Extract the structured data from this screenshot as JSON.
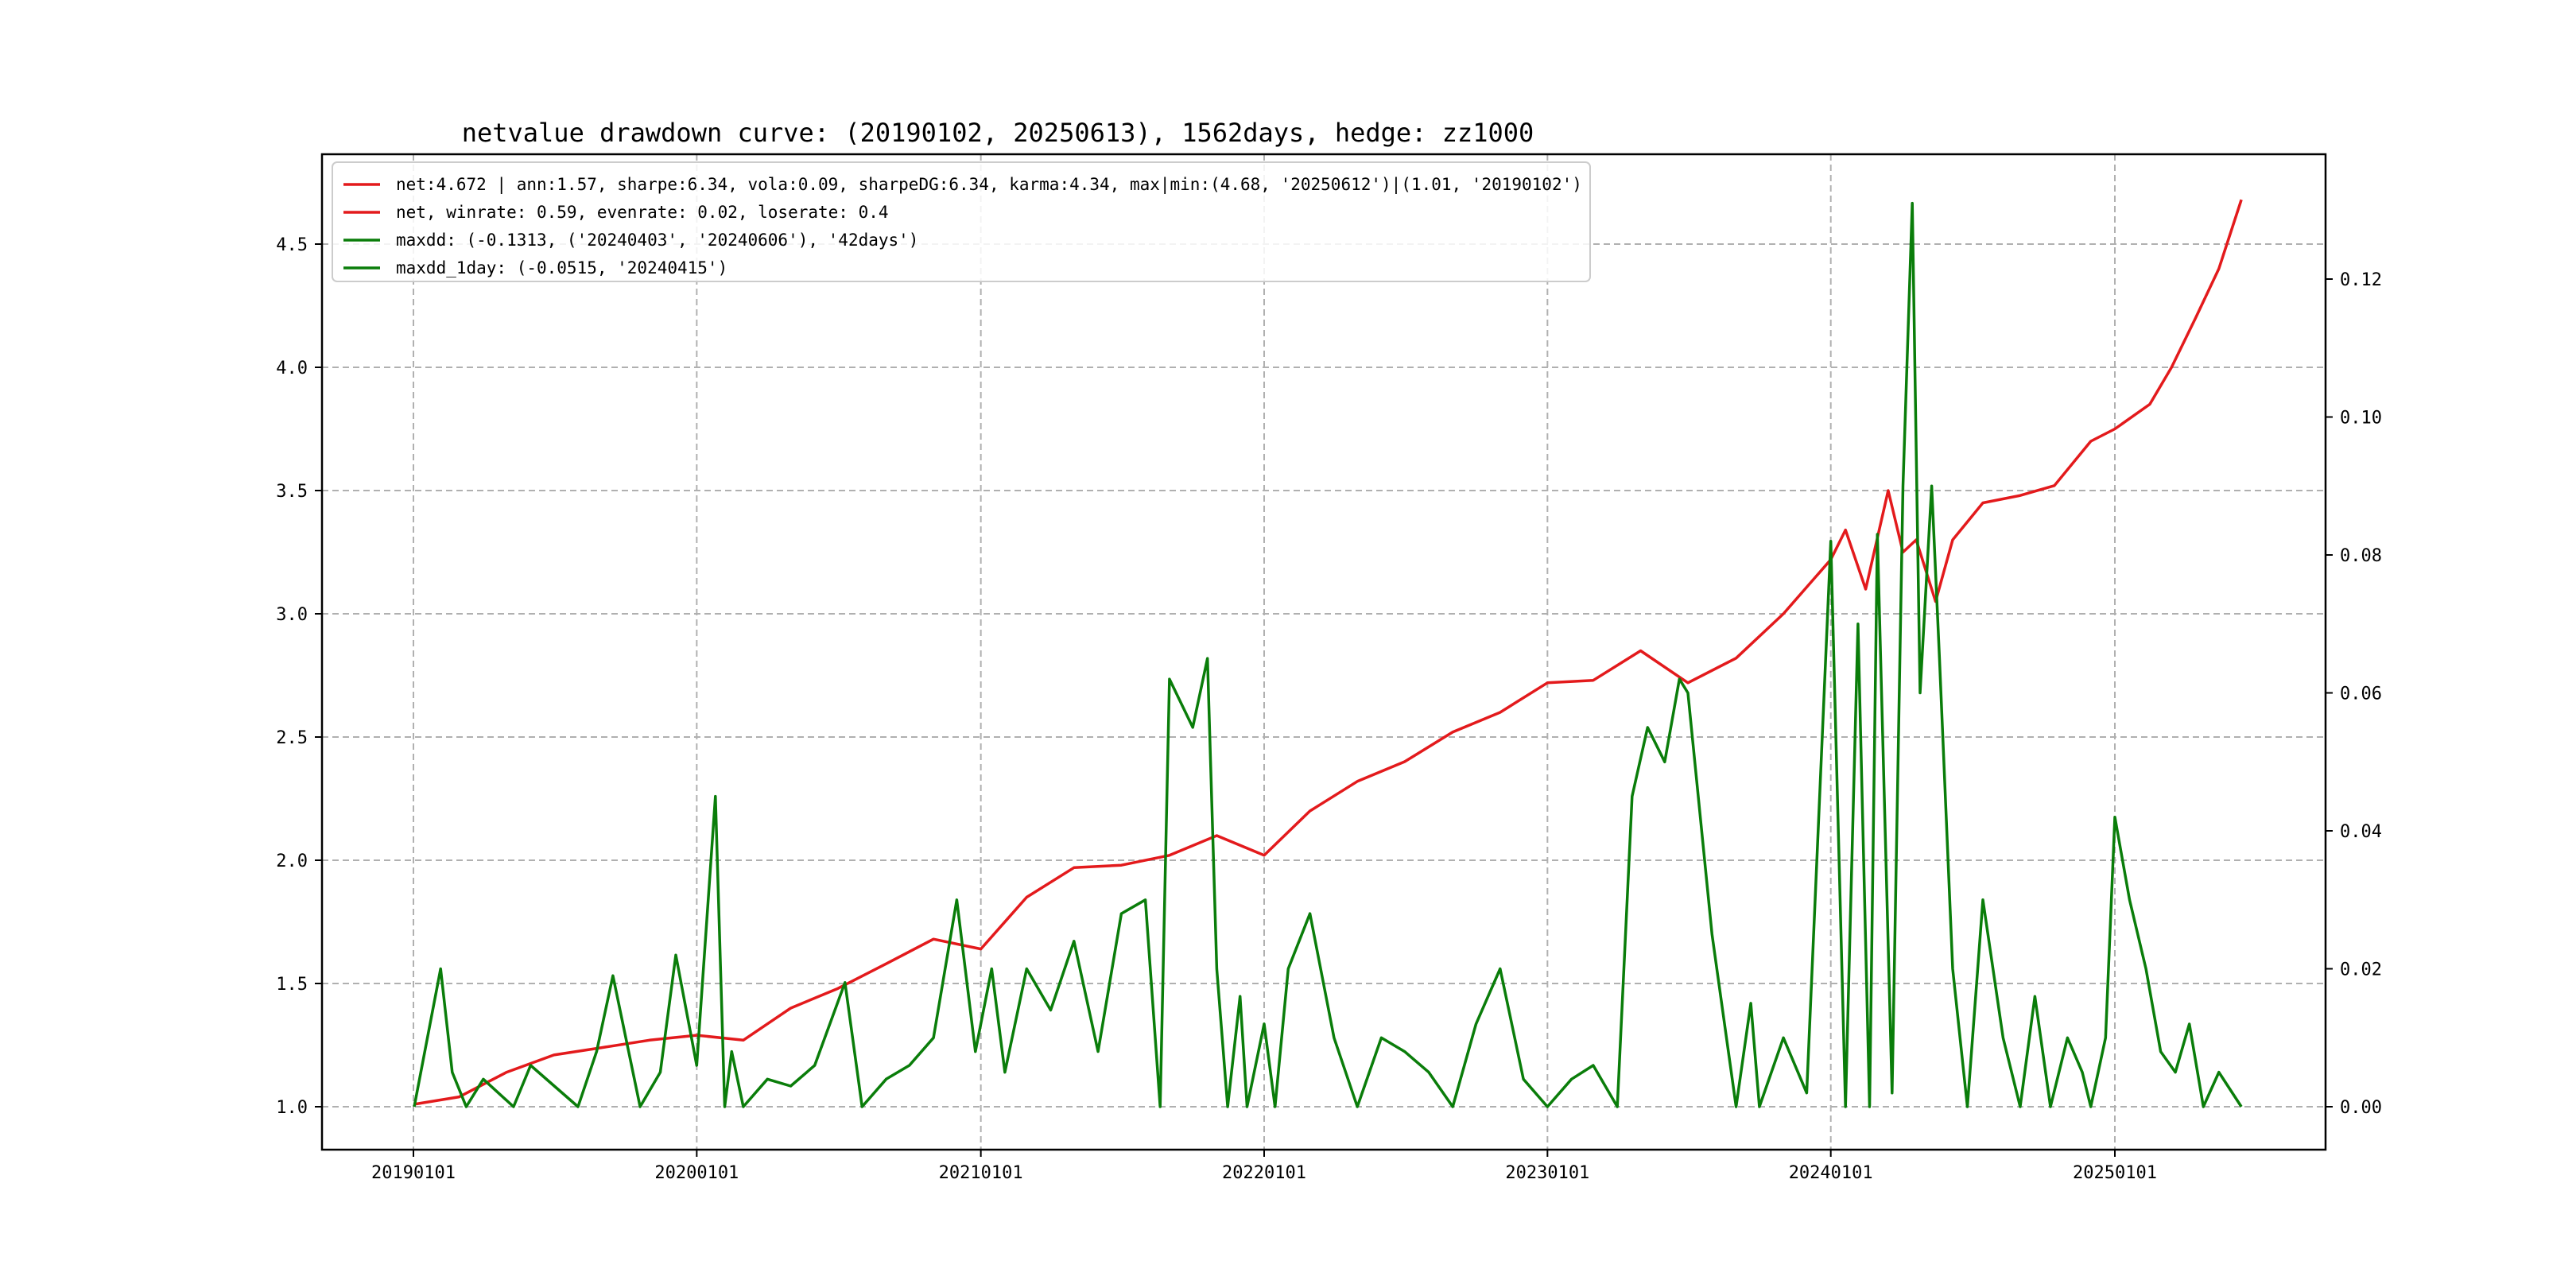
{
  "chart_data": {
    "type": "line",
    "title": "netvalue drawdown curve: (20190102, 20250613), 1562days, hedge: zz1000",
    "x_range": [
      "2019-01-02",
      "2025-06-13"
    ],
    "x_ticks": [
      "20190101",
      "20200101",
      "20210101",
      "20220101",
      "20230101",
      "20240101",
      "20250101"
    ],
    "y_left_ticks": [
      "1.0",
      "1.5",
      "2.0",
      "2.5",
      "3.0",
      "3.5",
      "4.0",
      "4.5"
    ],
    "y_right_ticks": [
      "0.00",
      "0.02",
      "0.04",
      "0.06",
      "0.08",
      "0.10",
      "0.12"
    ],
    "grid": true,
    "legend_position": "top-left",
    "legend": [
      {
        "label": "net:4.672 | ann:1.57, sharpe:6.34, vola:0.09, sharpeDG:6.34, karma:4.34, max|min:(4.68, '20250612')|(1.01, '20190102')",
        "color": "#e31a1c"
      },
      {
        "label": "net, winrate: 0.59, evenrate: 0.02, loserate: 0.4",
        "color": "#e31a1c"
      },
      {
        "label": "maxdd: (-0.1313, ('20240403', '20240606'), '42days')",
        "color": "#0a7d0a"
      },
      {
        "label": "maxdd_1day: (-0.0515, '20240415')",
        "color": "#0a7d0a"
      }
    ],
    "series": [
      {
        "axis": "left",
        "color": "#e31a1c",
        "x": [
          "2019-01-02",
          "2019-03-01",
          "2019-05-01",
          "2019-07-01",
          "2019-09-01",
          "2019-11-01",
          "2020-01-01",
          "2020-03-01",
          "2020-05-01",
          "2020-07-01",
          "2020-09-01",
          "2020-11-01",
          "2021-01-01",
          "2021-03-01",
          "2021-05-01",
          "2021-07-01",
          "2021-09-01",
          "2021-11-01",
          "2022-01-01",
          "2022-03-01",
          "2022-05-01",
          "2022-07-01",
          "2022-09-01",
          "2022-11-01",
          "2023-01-01",
          "2023-03-01",
          "2023-05-01",
          "2023-07-01",
          "2023-09-01",
          "2023-11-01",
          "2024-01-01",
          "2024-01-20",
          "2024-02-15",
          "2024-03-15",
          "2024-04-03",
          "2024-04-20",
          "2024-05-15",
          "2024-06-06",
          "2024-07-15",
          "2024-09-01",
          "2024-10-15",
          "2024-12-01",
          "2025-01-01",
          "2025-02-15",
          "2025-03-15",
          "2025-04-15",
          "2025-05-15",
          "2025-06-13"
        ],
        "values": [
          1.01,
          1.04,
          1.14,
          1.21,
          1.24,
          1.27,
          1.29,
          1.27,
          1.4,
          1.48,
          1.58,
          1.68,
          1.64,
          1.85,
          1.97,
          1.98,
          2.02,
          2.1,
          2.02,
          2.2,
          2.32,
          2.4,
          2.52,
          2.6,
          2.72,
          2.73,
          2.85,
          2.72,
          2.82,
          3.0,
          3.22,
          3.34,
          3.1,
          3.5,
          3.25,
          3.3,
          3.05,
          3.3,
          3.45,
          3.48,
          3.52,
          3.7,
          3.75,
          3.85,
          4.0,
          4.2,
          4.4,
          4.68
        ]
      },
      {
        "axis": "right",
        "color": "#0a7d0a",
        "x": [
          "2019-01-02",
          "2019-02-05",
          "2019-02-20",
          "2019-03-10",
          "2019-04-01",
          "2019-05-10",
          "2019-06-01",
          "2019-08-01",
          "2019-08-25",
          "2019-09-15",
          "2019-10-20",
          "2019-11-15",
          "2019-12-05",
          "2020-01-01",
          "2020-01-25",
          "2020-02-06",
          "2020-02-15",
          "2020-03-01",
          "2020-04-01",
          "2020-05-01",
          "2020-06-01",
          "2020-07-10",
          "2020-08-01",
          "2020-09-01",
          "2020-10-01",
          "2020-11-01",
          "2020-12-01",
          "2020-12-25",
          "2021-01-15",
          "2021-02-01",
          "2021-03-01",
          "2021-04-01",
          "2021-05-01",
          "2021-06-01",
          "2021-07-01",
          "2021-08-01",
          "2021-08-20",
          "2021-09-01",
          "2021-10-01",
          "2021-10-20",
          "2021-11-01",
          "2021-11-15",
          "2021-12-01",
          "2021-12-10",
          "2022-01-01",
          "2022-01-15",
          "2022-02-01",
          "2022-03-01",
          "2022-04-01",
          "2022-05-01",
          "2022-06-01",
          "2022-07-01",
          "2022-08-01",
          "2022-09-01",
          "2022-10-01",
          "2022-11-01",
          "2022-12-01",
          "2023-01-01",
          "2023-02-01",
          "2023-03-01",
          "2023-04-01",
          "2023-04-20",
          "2023-05-10",
          "2023-06-01",
          "2023-06-20",
          "2023-07-01",
          "2023-08-01",
          "2023-09-01",
          "2023-09-20",
          "2023-10-01",
          "2023-11-01",
          "2023-12-01",
          "2024-01-01",
          "2024-01-20",
          "2024-02-05",
          "2024-02-20",
          "2024-03-01",
          "2024-03-20",
          "2024-04-03",
          "2024-04-15",
          "2024-04-25",
          "2024-05-10",
          "2024-05-20",
          "2024-06-06",
          "2024-06-25",
          "2024-07-15",
          "2024-08-10",
          "2024-09-01",
          "2024-09-20",
          "2024-10-10",
          "2024-11-01",
          "2024-11-20",
          "2024-12-01",
          "2024-12-20",
          "2025-01-01",
          "2025-01-20",
          "2025-02-10",
          "2025-03-01",
          "2025-03-20",
          "2025-04-07",
          "2025-04-25",
          "2025-05-15",
          "2025-06-13"
        ],
        "values": [
          0.0,
          0.02,
          0.005,
          0.0,
          0.004,
          0.0,
          0.006,
          0.0,
          0.008,
          0.019,
          0.0,
          0.005,
          0.022,
          0.006,
          0.045,
          0.0,
          0.008,
          0.0,
          0.004,
          0.003,
          0.006,
          0.018,
          0.0,
          0.004,
          0.006,
          0.01,
          0.03,
          0.008,
          0.02,
          0.005,
          0.02,
          0.014,
          0.024,
          0.008,
          0.028,
          0.03,
          0.0,
          0.062,
          0.055,
          0.065,
          0.02,
          0.0,
          0.016,
          0.0,
          0.012,
          0.0,
          0.02,
          0.028,
          0.01,
          0.0,
          0.01,
          0.008,
          0.005,
          0.0,
          0.012,
          0.02,
          0.004,
          0.0,
          0.004,
          0.006,
          0.0,
          0.045,
          0.055,
          0.05,
          0.062,
          0.06,
          0.025,
          0.0,
          0.015,
          0.0,
          0.01,
          0.002,
          0.082,
          0.0,
          0.07,
          0.0,
          0.083,
          0.002,
          0.09,
          0.131,
          0.06,
          0.09,
          0.065,
          0.02,
          0.0,
          0.03,
          0.01,
          0.0,
          0.016,
          0.0,
          0.01,
          0.005,
          0.0,
          0.01,
          0.042,
          0.03,
          0.02,
          0.008,
          0.005,
          0.012,
          0.0,
          0.005,
          0.0
        ]
      }
    ]
  }
}
